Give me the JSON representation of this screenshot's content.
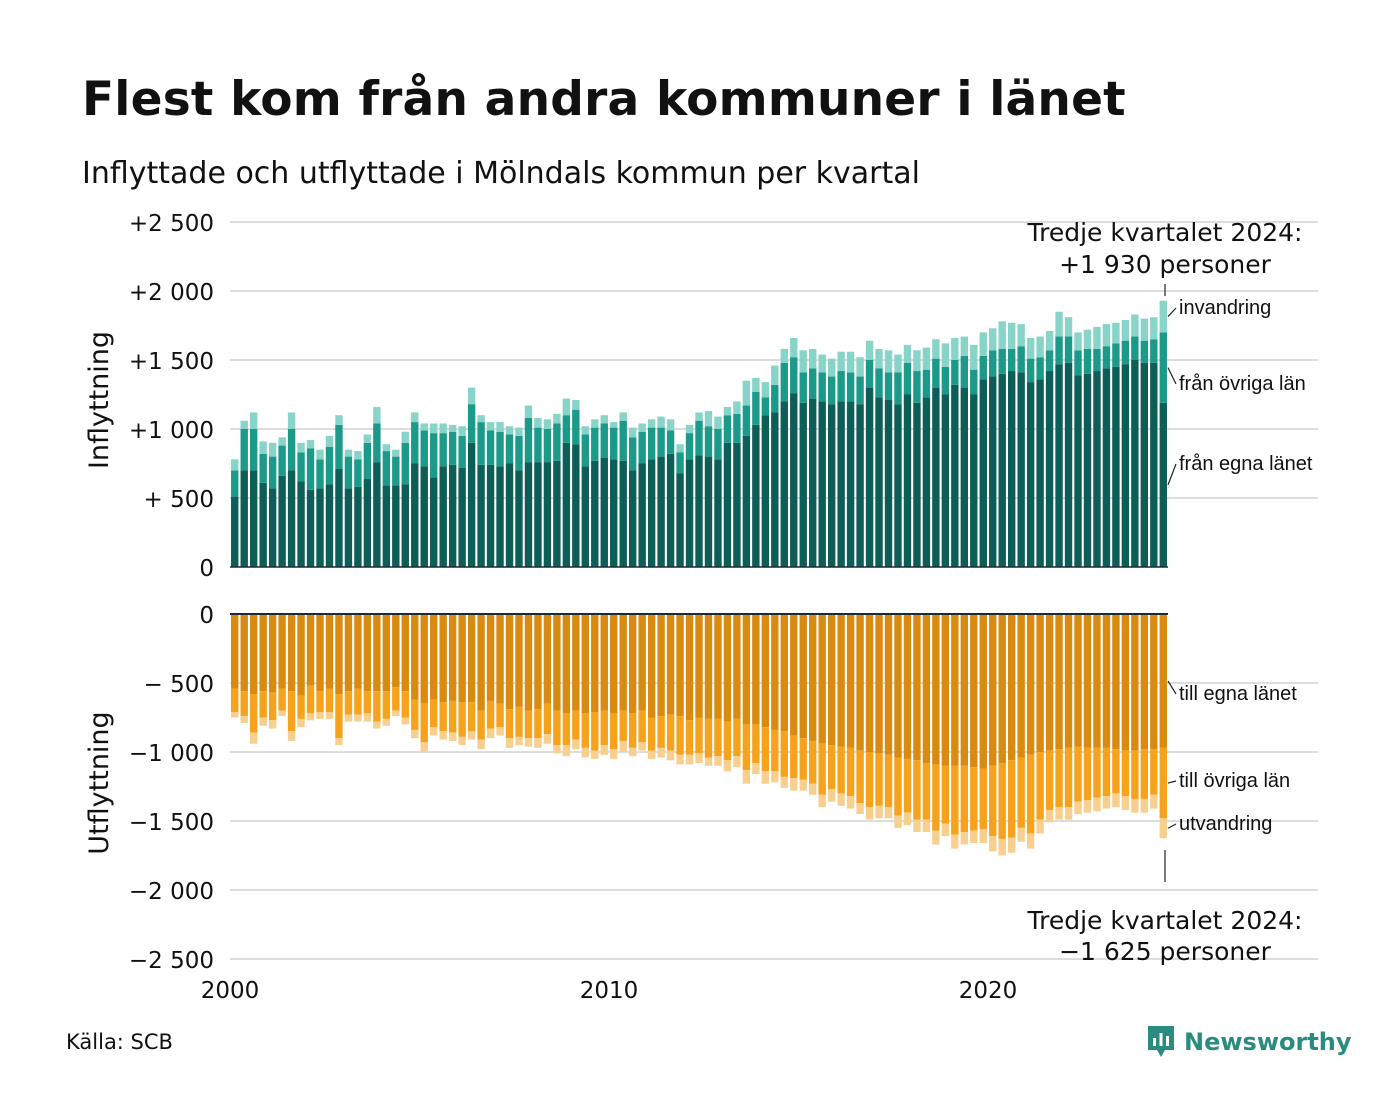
{
  "header": {
    "title": "Flest kom från andra kommuner i länet",
    "subtitle": "Inflyttade och utflyttade i Mölndals kommun per kvartal"
  },
  "footer": {
    "source": "Källa: SCB",
    "brand": "Newsworthy",
    "brand_color": "#2a8c7e"
  },
  "colors": {
    "in_lan": "#0e5e58",
    "in_ovriga": "#1b9a8a",
    "in_invandring": "#88d4c9",
    "out_lan": "#d98a10",
    "out_ovriga": "#f7a21c",
    "out_utvandring": "#f7d08f",
    "grid": "#dddddd",
    "zero_line": "#1a2a3a"
  },
  "chart_data": {
    "type": "bar",
    "stacked": true,
    "x_unit": "quarter",
    "x_start": "2000 Q1",
    "x_end": "2024 Q3",
    "x_ticks": [
      "2000",
      "2010",
      "2020"
    ],
    "panels": [
      {
        "ylabel": "Inflyttning",
        "ylim": [
          0,
          2500
        ],
        "yticks": [
          0,
          500,
          1000,
          1500,
          2000,
          2500
        ],
        "ytick_labels": [
          "0",
          "+  500",
          "+1 000",
          "+1 500",
          "+2 000",
          "+2 500"
        ],
        "series": [
          {
            "name": "från egna länet",
            "color_key": "in_lan",
            "values": [
              510,
              700,
              700,
              610,
              570,
              660,
              700,
              620,
              560,
              570,
              600,
              710,
              570,
              580,
              640,
              760,
              590,
              590,
              600,
              750,
              730,
              650,
              730,
              740,
              720,
              900,
              740,
              740,
              730,
              750,
              700,
              760,
              760,
              760,
              770,
              900,
              890,
              730,
              770,
              790,
              780,
              770,
              700,
              750,
              780,
              800,
              820,
              680,
              780,
              810,
              800,
              780,
              900,
              900,
              950,
              1030,
              1100,
              1120,
              1200,
              1260,
              1190,
              1220,
              1200,
              1180,
              1200,
              1200,
              1180,
              1300,
              1230,
              1210,
              1180,
              1250,
              1190,
              1230,
              1300,
              1250,
              1320,
              1300,
              1250,
              1360,
              1380,
              1400,
              1420,
              1410,
              1340,
              1360,
              1420,
              1470,
              1480,
              1390,
              1400,
              1420,
              1440,
              1450,
              1470,
              1500,
              1480,
              1480,
              1190
            ]
          },
          {
            "name": "från övriga län",
            "color_key": "in_ovriga",
            "values": [
              190,
              300,
              300,
              210,
              230,
              220,
              300,
              210,
              300,
              210,
              270,
              320,
              230,
              200,
              260,
              280,
              250,
              210,
              300,
              300,
              260,
              320,
              240,
              240,
              230,
              280,
              310,
              250,
              250,
              210,
              250,
              320,
              250,
              240,
              270,
              200,
              250,
              230,
              240,
              250,
              230,
              290,
              240,
              230,
              230,
              210,
              170,
              150,
              190,
              250,
              220,
              220,
              200,
              210,
              220,
              240,
              130,
              200,
              280,
              260,
              220,
              220,
              210,
              200,
              220,
              210,
              200,
              200,
              210,
              200,
              230,
              230,
              230,
              200,
              210,
              200,
              180,
              230,
              180,
              170,
              190,
              180,
              160,
              190,
              170,
              160,
              150,
              200,
              190,
              180,
              180,
              160,
              160,
              170,
              170,
              170,
              160,
              170,
              510
            ]
          },
          {
            "name": "invandring",
            "color_key": "in_invandring",
            "values": [
              80,
              60,
              120,
              90,
              100,
              60,
              120,
              70,
              60,
              70,
              80,
              70,
              50,
              60,
              60,
              120,
              50,
              50,
              80,
              70,
              50,
              70,
              70,
              50,
              70,
              120,
              50,
              60,
              70,
              60,
              60,
              90,
              70,
              70,
              70,
              120,
              70,
              60,
              60,
              60,
              40,
              60,
              70,
              60,
              60,
              80,
              80,
              60,
              60,
              60,
              110,
              90,
              60,
              90,
              180,
              100,
              110,
              140,
              100,
              140,
              160,
              140,
              130,
              130,
              140,
              150,
              140,
              140,
              140,
              160,
              130,
              130,
              150,
              160,
              140,
              170,
              160,
              140,
              180,
              170,
              160,
              200,
              190,
              160,
              150,
              150,
              140,
              180,
              140,
              130,
              140,
              160,
              160,
              150,
              150,
              160,
              160,
              160,
              230
            ]
          }
        ]
      },
      {
        "ylabel": "Utflyttning",
        "ylim": [
          -2500,
          0
        ],
        "yticks": [
          0,
          -500,
          -1000,
          -1500,
          -2000,
          -2500
        ],
        "ytick_labels": [
          "0",
          "−  500",
          "−1 000",
          "−1 500",
          "−2 000",
          "−2 500"
        ],
        "series": [
          {
            "name": "till egna länet",
            "color_key": "out_lan",
            "values": [
              -540,
              -560,
              -580,
              -560,
              -570,
              -540,
              -560,
              -590,
              -520,
              -560,
              -540,
              -580,
              -560,
              -540,
              -560,
              -560,
              -560,
              -530,
              -560,
              -620,
              -650,
              -620,
              -640,
              -630,
              -640,
              -640,
              -700,
              -630,
              -650,
              -690,
              -670,
              -700,
              -690,
              -650,
              -700,
              -720,
              -700,
              -720,
              -710,
              -700,
              -720,
              -700,
              -720,
              -700,
              -750,
              -740,
              -730,
              -740,
              -770,
              -750,
              -760,
              -760,
              -780,
              -760,
              -800,
              -800,
              -820,
              -840,
              -850,
              -880,
              -900,
              -920,
              -940,
              -950,
              -960,
              -970,
              -990,
              -1000,
              -1010,
              -1020,
              -1040,
              -1050,
              -1060,
              -1080,
              -1090,
              -1100,
              -1100,
              -1100,
              -1110,
              -1120,
              -1100,
              -1080,
              -1060,
              -1040,
              -1020,
              -1000,
              -990,
              -980,
              -970,
              -960,
              -970,
              -970,
              -970,
              -980,
              -990,
              -990,
              -980,
              -980,
              -970
            ]
          },
          {
            "name": "till övriga län",
            "color_key": "out_ovriga",
            "values": [
              -170,
              -180,
              -280,
              -190,
              -200,
              -160,
              -290,
              -170,
              -200,
              -150,
              -170,
              -320,
              -170,
              -190,
              -160,
              -220,
              -200,
              -170,
              -190,
              -220,
              -280,
              -200,
              -210,
              -230,
              -250,
              -210,
              -210,
              -200,
              -170,
              -210,
              -220,
              -200,
              -210,
              -220,
              -250,
              -230,
              -210,
              -250,
              -280,
              -250,
              -260,
              -220,
              -250,
              -230,
              -240,
              -230,
              -260,
              -280,
              -250,
              -260,
              -280,
              -270,
              -280,
              -270,
              -330,
              -280,
              -320,
              -300,
              -330,
              -310,
              -300,
              -310,
              -370,
              -320,
              -340,
              -350,
              -380,
              -400,
              -380,
              -380,
              -420,
              -390,
              -430,
              -410,
              -480,
              -420,
              -500,
              -480,
              -460,
              -440,
              -510,
              -550,
              -560,
              -510,
              -570,
              -490,
              -430,
              -420,
              -430,
              -400,
              -380,
              -360,
              -350,
              -320,
              -330,
              -350,
              -360,
              -330,
              -510
            ]
          },
          {
            "name": "utvandring",
            "color_key": "out_utvandring",
            "values": [
              -40,
              -50,
              -80,
              -60,
              -60,
              -40,
              -70,
              -60,
              -50,
              -50,
              -50,
              -50,
              -50,
              -50,
              -60,
              -50,
              -50,
              -40,
              -50,
              -60,
              -70,
              -60,
              -60,
              -60,
              -60,
              -60,
              -70,
              -70,
              -60,
              -70,
              -60,
              -60,
              -70,
              -70,
              -60,
              -80,
              -70,
              -70,
              -60,
              -70,
              -70,
              -80,
              -60,
              -60,
              -60,
              -70,
              -70,
              -70,
              -70,
              -70,
              -60,
              -70,
              -80,
              -80,
              -100,
              -80,
              -90,
              -80,
              -80,
              -90,
              -80,
              -80,
              -90,
              -90,
              -90,
              -90,
              -80,
              -90,
              -90,
              -80,
              -90,
              -90,
              -90,
              -90,
              -100,
              -90,
              -100,
              -90,
              -90,
              -100,
              -110,
              -120,
              -110,
              -100,
              -110,
              -100,
              -90,
              -90,
              -90,
              -90,
              -90,
              -100,
              -90,
              -100,
              -100,
              -100,
              -100,
              -100,
              -145
            ]
          }
        ]
      }
    ],
    "annotations": {
      "in_total": {
        "line1": "Tredje kvartalet 2024:",
        "line2": "+1 930 personer"
      },
      "out_total": {
        "line1": "Tredje kvartalet 2024:",
        "line2": "−1 625 personer"
      }
    }
  }
}
